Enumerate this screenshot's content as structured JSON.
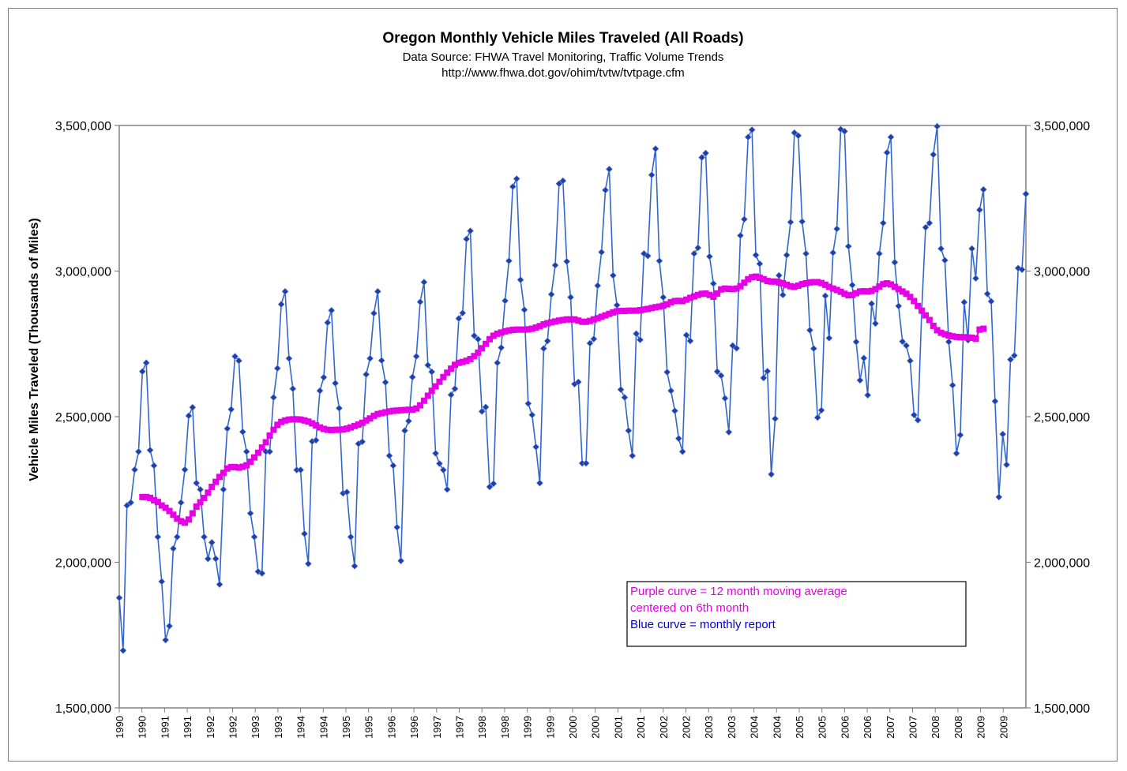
{
  "chart_data": {
    "type": "line",
    "title": "Oregon Monthly Vehicle Miles Traveled (All Roads)",
    "subtitle_lines": [
      "Data Source: FHWA Travel Monitoring, Traffic Volume Trends",
      "http://www.fhwa.dot.gov/ohim/tvtw/tvtpage.cfm"
    ],
    "ylabel": "Vehicle Miles Traveled (Thousands of Miles)",
    "ylim": [
      1500000,
      3500000
    ],
    "y_ticks": [
      "1,500,000",
      "2,000,000",
      "2,500,000",
      "3,000,000",
      "3,500,000"
    ],
    "x_tick_labels": [
      "1990",
      "1990",
      "1991",
      "1991",
      "1992",
      "1992",
      "1993",
      "1993",
      "1994",
      "1994",
      "1995",
      "1995",
      "1996",
      "1996",
      "1997",
      "1997",
      "1998",
      "1998",
      "1999",
      "1999",
      "2000",
      "2000",
      "2001",
      "2001",
      "2002",
      "2002",
      "2003",
      "2003",
      "2004",
      "2004",
      "2005",
      "2005",
      "2006",
      "2006",
      "2007",
      "2007",
      "2008",
      "2008",
      "2009",
      "2009"
    ],
    "legend": {
      "placement": "bottom-right",
      "lines": [
        {
          "text": "Purple curve = 12 month moving average",
          "color": "#e600e6"
        },
        {
          "text": "centered on 6th month",
          "color": "#e600e6"
        },
        {
          "text": "Blue curve = monthly report",
          "color": "#0000cc"
        }
      ]
    },
    "series": [
      {
        "color": "#3366cc",
        "marker_color": "#1f3fa8",
        "x_start": "1990-01",
        "values": [
          1878000,
          1697000,
          2195000,
          2205000,
          2318000,
          2380000,
          2655000,
          2685000,
          2385000,
          2332000,
          2087000,
          1934000,
          1733000,
          1781000,
          2047000,
          2087000,
          2205000,
          2318000,
          2503000,
          2532000,
          2272000,
          2250000,
          2087000,
          2012000,
          2068000,
          2012000,
          1924000,
          2250000,
          2459000,
          2525000,
          2707000,
          2692000,
          2448000,
          2380000,
          2168000,
          2087000,
          1968000,
          1962000,
          2380000,
          2380000,
          2566000,
          2666000,
          2886000,
          2930000,
          2700000,
          2596000,
          2317000,
          2317000,
          2098000,
          1995000,
          2415000,
          2419000,
          2589000,
          2635000,
          2823000,
          2865000,
          2615000,
          2529000,
          2237000,
          2241000,
          2087000,
          1987000,
          2407000,
          2414000,
          2645000,
          2700000,
          2855000,
          2930000,
          2693000,
          2618000,
          2366000,
          2332000,
          2120000,
          2005000,
          2452000,
          2485000,
          2636000,
          2707000,
          2894000,
          2962000,
          2677000,
          2654000,
          2374000,
          2339000,
          2317000,
          2250000,
          2575000,
          2596000,
          2837000,
          2856000,
          3110000,
          3138000,
          2778000,
          2766000,
          2518000,
          2533000,
          2259000,
          2270000,
          2685000,
          2737000,
          2898000,
          3035000,
          3290000,
          3317000,
          2970000,
          2867000,
          2545000,
          2506000,
          2396000,
          2272000,
          2734000,
          2760000,
          2920000,
          3020000,
          3300000,
          3310000,
          3033000,
          2910000,
          2612000,
          2619000,
          2340000,
          2340000,
          2752000,
          2767000,
          2950000,
          3065000,
          3278000,
          3350000,
          2985000,
          2883000,
          2593000,
          2566000,
          2452000,
          2366000,
          2785000,
          2764000,
          3060000,
          3052000,
          3330000,
          3420000,
          3035000,
          2910000,
          2653000,
          2589000,
          2520000,
          2425000,
          2380000,
          2780000,
          2760000,
          3060000,
          3080000,
          3390000,
          3405000,
          3050000,
          2957000,
          2655000,
          2641000,
          2563000,
          2447000,
          2744000,
          2735000,
          3122000,
          3178000,
          3460000,
          3485000,
          3055000,
          3025000,
          2633000,
          2656000,
          2302000,
          2493000,
          2985000,
          2918000,
          3055000,
          3168000,
          3475000,
          3465000,
          3170000,
          3060000,
          2797000,
          2734000,
          2497000,
          2522000,
          2915000,
          2770000,
          3063000,
          3145000,
          3487000,
          3480000,
          3085000,
          2952000,
          2757000,
          2625000,
          2701000,
          2574000,
          2888000,
          2820000,
          3060000,
          3165000,
          3407000,
          3460000,
          3030000,
          2880000,
          2758000,
          2744000,
          2692000,
          2506000,
          2488000,
          2866000,
          3150000,
          3165000,
          3400000,
          3497000,
          3077000,
          3037000,
          2757000,
          2608000,
          2374000,
          2437000,
          2893000,
          2763000,
          3077000,
          2975000,
          3210000,
          3280000,
          2922000,
          2896000,
          2553000,
          2224000,
          2440000,
          2335000,
          2696000,
          2710000,
          3010000,
          3005000,
          3265000
        ]
      },
      {
        "color": "#e600e6",
        "x_start": "1990-07",
        "values": [
          2224000,
          2224000,
          2221000,
          2213000,
          2207000,
          2195000,
          2187000,
          2176000,
          2163000,
          2150000,
          2141000,
          2136000,
          2147000,
          2168000,
          2191000,
          2206000,
          2221000,
          2239000,
          2259000,
          2276000,
          2293000,
          2307000,
          2322000,
          2327000,
          2327000,
          2325000,
          2328000,
          2333000,
          2345000,
          2360000,
          2376000,
          2394000,
          2412000,
          2435000,
          2455000,
          2472000,
          2482000,
          2487000,
          2490000,
          2491000,
          2491000,
          2490000,
          2487000,
          2483000,
          2477000,
          2470000,
          2463000,
          2458000,
          2455000,
          2454000,
          2455000,
          2455000,
          2456000,
          2459000,
          2463000,
          2468000,
          2473000,
          2479000,
          2487000,
          2494000,
          2503000,
          2509000,
          2512000,
          2515000,
          2518000,
          2520000,
          2521000,
          2522000,
          2523000,
          2524000,
          2524000,
          2528000,
          2539000,
          2555000,
          2572000,
          2589000,
          2604000,
          2620000,
          2636000,
          2651000,
          2665000,
          2678000,
          2685000,
          2688000,
          2692000,
          2698000,
          2708000,
          2720000,
          2735000,
          2750000,
          2766000,
          2778000,
          2785000,
          2789000,
          2793000,
          2796000,
          2798000,
          2799000,
          2799000,
          2799000,
          2800000,
          2802000,
          2806000,
          2811000,
          2817000,
          2821000,
          2824000,
          2827000,
          2830000,
          2832000,
          2834000,
          2834000,
          2834000,
          2830000,
          2826000,
          2826000,
          2829000,
          2834000,
          2838000,
          2843000,
          2848000,
          2853000,
          2858000,
          2862000,
          2863000,
          2863000,
          2864000,
          2864000,
          2864000,
          2866000,
          2868000,
          2870000,
          2873000,
          2876000,
          2878000,
          2881000,
          2886000,
          2893000,
          2897000,
          2898000,
          2897000,
          2902000,
          2908000,
          2913000,
          2918000,
          2922000,
          2923000,
          2918000,
          2912000,
          2923000,
          2937000,
          2940000,
          2939000,
          2938000,
          2940000,
          2948000,
          2960000,
          2972000,
          2979000,
          2981000,
          2977000,
          2972000,
          2966000,
          2964000,
          2964000,
          2961000,
          2958000,
          2953000,
          2948000,
          2946000,
          2950000,
          2955000,
          2958000,
          2961000,
          2962000,
          2962000,
          2959000,
          2953000,
          2946000,
          2940000,
          2935000,
          2929000,
          2922000,
          2917000,
          2918000,
          2924000,
          2930000,
          2931000,
          2930000,
          2932000,
          2938000,
          2947000,
          2955000,
          2958000,
          2954000,
          2946000,
          2938000,
          2930000,
          2922000,
          2911000,
          2897000,
          2880000,
          2864000,
          2848000,
          2832000,
          2812000,
          2797000,
          2788000,
          2783000,
          2779000,
          2776000,
          2774000,
          2773000,
          2773000,
          2772000,
          2771000,
          2768000,
          2799000,
          2802000
        ]
      }
    ]
  }
}
